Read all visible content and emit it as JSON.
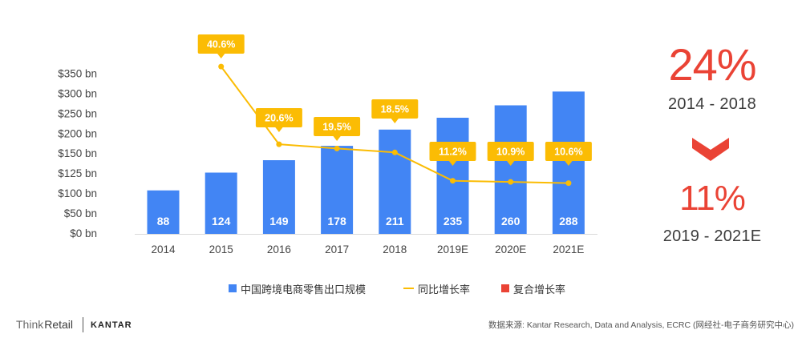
{
  "chart_data": {
    "type": "bar",
    "categories": [
      "2014",
      "2015",
      "2016",
      "2017",
      "2018",
      "2019E",
      "2020E",
      "2021E"
    ],
    "series": [
      {
        "name": "中国跨境电商零售出口规模",
        "type": "bar",
        "color": "#4285F4",
        "values": [
          88,
          124,
          149,
          178,
          211,
          235,
          260,
          288
        ]
      },
      {
        "name": "同比增长率",
        "type": "line",
        "color": "#FBBC04",
        "unit": "%",
        "values": [
          null,
          40.6,
          20.6,
          19.5,
          18.5,
          11.2,
          10.9,
          10.6
        ]
      }
    ],
    "yticks": [
      "$0 bn",
      "$50 bn",
      "$100 bn",
      "$125 bn",
      "$150 bn",
      "$200 bn",
      "$250 bn",
      "$300 bn",
      "$350 bn"
    ],
    "ylim": [
      0,
      350
    ],
    "grid": false,
    "legend_position": "bottom"
  },
  "cagr": {
    "name": "复合增长率",
    "color": "#EA4335",
    "arrow_icon": "chevron-down-icon",
    "periods": [
      {
        "value": "24%",
        "range": "2014 - 2018"
      },
      {
        "value": "11%",
        "range": "2019 - 2021E"
      }
    ]
  },
  "footer": {
    "brand_think": "Think",
    "brand_retail": "Retail",
    "partner": "KANTAR",
    "source": "数据来源: Kantar Research, Data and Analysis, ECRC (网经社-电子商务研究中心)"
  }
}
